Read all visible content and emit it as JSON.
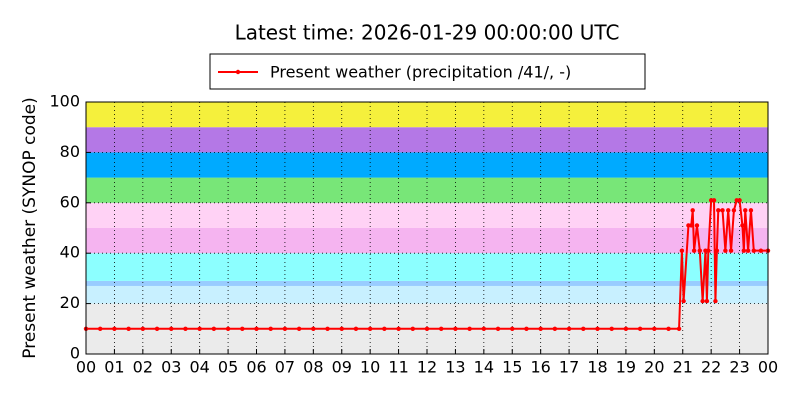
{
  "chart_data": {
    "type": "line",
    "title": "Latest time: 2026-01-29 00:00:00 UTC",
    "y_label": "Present weather (SYNOP code)",
    "xlim": [
      0,
      24
    ],
    "ylim": [
      0,
      100
    ],
    "xticks": [
      {
        "value": 0,
        "label": "00"
      },
      {
        "value": 1,
        "label": "01"
      },
      {
        "value": 2,
        "label": "02"
      },
      {
        "value": 3,
        "label": "03"
      },
      {
        "value": 4,
        "label": "04"
      },
      {
        "value": 5,
        "label": "05"
      },
      {
        "value": 6,
        "label": "06"
      },
      {
        "value": 7,
        "label": "07"
      },
      {
        "value": 8,
        "label": "08"
      },
      {
        "value": 9,
        "label": "09"
      },
      {
        "value": 10,
        "label": "10"
      },
      {
        "value": 11,
        "label": "11"
      },
      {
        "value": 12,
        "label": "12"
      },
      {
        "value": 13,
        "label": "13"
      },
      {
        "value": 14,
        "label": "14"
      },
      {
        "value": 15,
        "label": "15"
      },
      {
        "value": 16,
        "label": "16"
      },
      {
        "value": 17,
        "label": "17"
      },
      {
        "value": 18,
        "label": "18"
      },
      {
        "value": 19,
        "label": "19"
      },
      {
        "value": 20,
        "label": "20"
      },
      {
        "value": 21,
        "label": "21"
      },
      {
        "value": 22,
        "label": "22"
      },
      {
        "value": 23,
        "label": "23"
      },
      {
        "value": 24,
        "label": "00"
      }
    ],
    "yticks": [
      0,
      20,
      40,
      60,
      80,
      100
    ],
    "grid": true,
    "legend": "top",
    "bands": [
      {
        "from": 0,
        "to": 20,
        "color": "#ebebeb"
      },
      {
        "from": 20,
        "to": 27,
        "color": "#c8f0ff"
      },
      {
        "from": 27,
        "to": 29,
        "color": "#99ccff"
      },
      {
        "from": 29,
        "to": 40,
        "color": "#8cffff"
      },
      {
        "from": 40,
        "to": 50,
        "color": "#f5b4f0"
      },
      {
        "from": 50,
        "to": 60,
        "color": "#ffd2f5"
      },
      {
        "from": 60,
        "to": 70,
        "color": "#78e678"
      },
      {
        "from": 70,
        "to": 80,
        "color": "#00aaff"
      },
      {
        "from": 80,
        "to": 90,
        "color": "#b478e6"
      },
      {
        "from": 90,
        "to": 100,
        "color": "#f5f03c"
      }
    ],
    "x": [
      0,
      0.5,
      1,
      1.5,
      2,
      2.5,
      3,
      3.5,
      4,
      4.5,
      5,
      5.5,
      6,
      6.5,
      7,
      7.5,
      8,
      8.5,
      9,
      9.5,
      10,
      10.5,
      11,
      11.5,
      12,
      12.5,
      13,
      13.5,
      14,
      14.5,
      15,
      15.5,
      16,
      16.5,
      17,
      17.5,
      18,
      18.5,
      19,
      19.5,
      20,
      20.5,
      20.87,
      20.97,
      21.03,
      21.2,
      21.3,
      21.35,
      21.4,
      21.5,
      21.6,
      21.7,
      21.8,
      21.85,
      21.9,
      22.0,
      22.1,
      22.15,
      22.2,
      22.25,
      22.4,
      22.5,
      22.6,
      22.7,
      22.8,
      22.9,
      23.0,
      23.1,
      23.15,
      23.2,
      23.3,
      23.4,
      23.5,
      23.75,
      24
    ],
    "series": [
      {
        "name": "Present weather (precipitation /41/, -)",
        "color": "#ff0000",
        "values": [
          10,
          10,
          10,
          10,
          10,
          10,
          10,
          10,
          10,
          10,
          10,
          10,
          10,
          10,
          10,
          10,
          10,
          10,
          10,
          10,
          10,
          10,
          10,
          10,
          10,
          10,
          10,
          10,
          10,
          10,
          10,
          10,
          10,
          10,
          10,
          10,
          10,
          10,
          10,
          10,
          10,
          10,
          10,
          41,
          21,
          51,
          51,
          57,
          41,
          51,
          41,
          21,
          41,
          21,
          41,
          61,
          61,
          21,
          41,
          57,
          57,
          41,
          57,
          41,
          57,
          61,
          61,
          51,
          41,
          57,
          41,
          57,
          41,
          41,
          41
        ]
      }
    ]
  }
}
